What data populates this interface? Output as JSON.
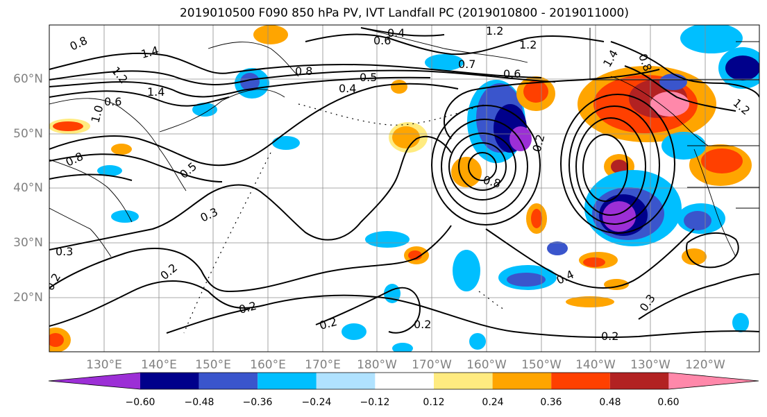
{
  "title": "2019010500 F090 850 hPa PV, IVT Landfall PC (2019010800 - 2019011000)",
  "lat_labels": [
    "60°N",
    "50°N",
    "40°N",
    "30°N",
    "20°N"
  ],
  "lon_labels": [
    "130°E",
    "140°E",
    "150°E",
    "160°E",
    "170°E",
    "180°W",
    "170°W",
    "160°W",
    "150°W",
    "140°W",
    "130°W",
    "120°W"
  ],
  "contour_labels": [
    "0.8",
    "1.4",
    "1.2",
    "0.6",
    "1.4",
    "1.0",
    "0.8",
    "0.4",
    "0.6",
    "1.2",
    "1.2",
    "0.5",
    "0.4",
    "0.7",
    "0.6",
    "0.8",
    "0.5",
    "0.3",
    "0.3",
    "0.2",
    "0.2",
    "0.2",
    "0.2",
    "0.2",
    "0.8",
    "0.2",
    "0.4",
    "0.3",
    "0.2",
    "0.8",
    "1.2",
    "1.4"
  ],
  "colorbar": {
    "colors": [
      "#9c2fd6",
      "#00008b",
      "#3a55cc",
      "#00bfff",
      "#b0e2ff",
      "#ffffff",
      "#ffeb80",
      "#ffa500",
      "#ff4000",
      "#b22222",
      "#ff88aa"
    ],
    "tick_labels": [
      "−0.60",
      "−0.48",
      "−0.36",
      "−0.24",
      "−0.12",
      "0.12",
      "0.24",
      "0.36",
      "0.48",
      "0.60"
    ]
  }
}
